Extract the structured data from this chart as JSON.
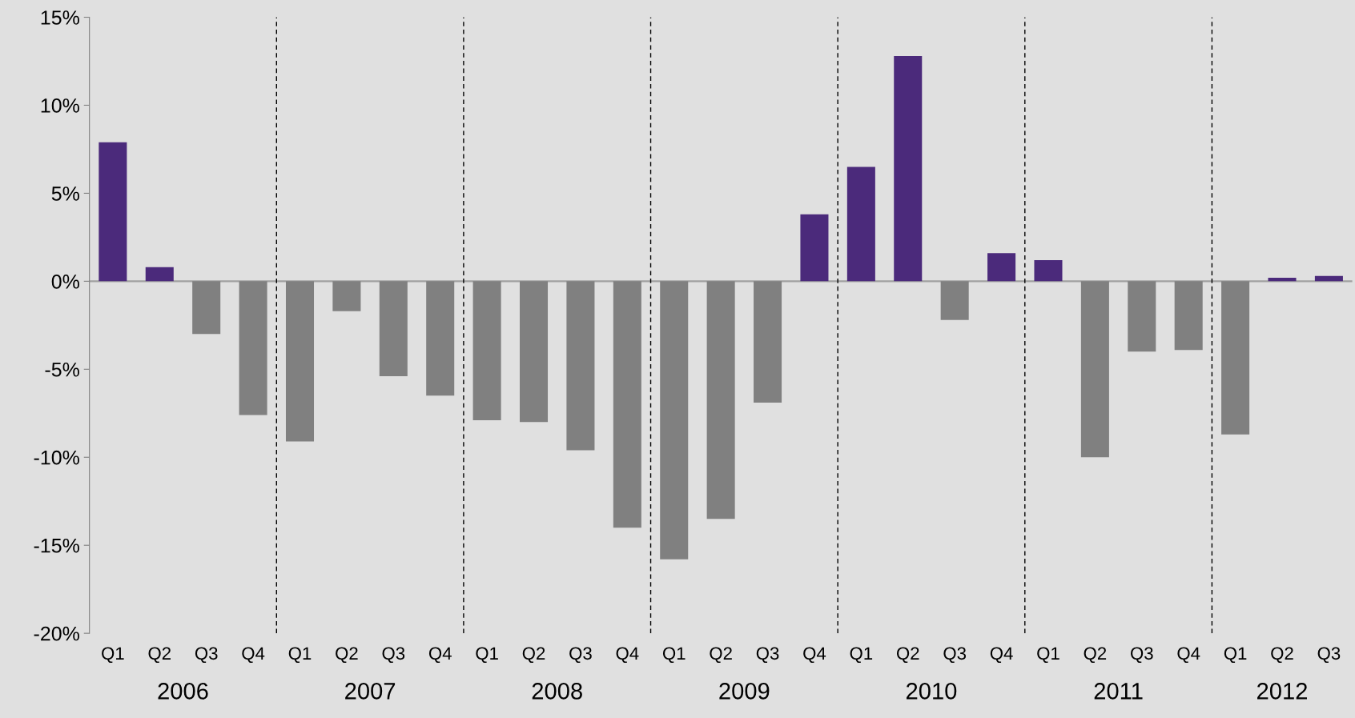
{
  "chart_data": {
    "type": "bar",
    "categories": [
      "Q1",
      "Q2",
      "Q3",
      "Q4",
      "Q1",
      "Q2",
      "Q3",
      "Q4",
      "Q1",
      "Q2",
      "Q3",
      "Q4",
      "Q1",
      "Q2",
      "Q3",
      "Q4",
      "Q1",
      "Q2",
      "Q3",
      "Q4",
      "Q1",
      "Q2",
      "Q3",
      "Q4",
      "Q1",
      "Q2",
      "Q3"
    ],
    "values": [
      7.9,
      0.8,
      -3.0,
      -7.6,
      -9.1,
      -1.7,
      -5.4,
      -6.5,
      -7.9,
      -8.0,
      -9.6,
      -14.0,
      -15.8,
      -13.5,
      -6.9,
      3.8,
      6.5,
      12.8,
      -2.2,
      1.6,
      1.2,
      -10.0,
      -4.0,
      -3.9,
      -8.7,
      0.2,
      0.3
    ],
    "colors": [
      "#4b2a7b",
      "#4b2a7b",
      "#808080",
      "#808080",
      "#808080",
      "#808080",
      "#808080",
      "#808080",
      "#808080",
      "#808080",
      "#808080",
      "#808080",
      "#808080",
      "#808080",
      "#808080",
      "#4b2a7b",
      "#4b2a7b",
      "#4b2a7b",
      "#808080",
      "#4b2a7b",
      "#4b2a7b",
      "#808080",
      "#808080",
      "#808080",
      "#808080",
      "#4b2a7b",
      "#4b2a7b"
    ],
    "ylim": [
      -20,
      15
    ],
    "yticks": [
      {
        "value": -20,
        "label": "-20%"
      },
      {
        "value": -15,
        "label": "-15%"
      },
      {
        "value": -10,
        "label": "-10%"
      },
      {
        "value": -5,
        "label": "-5%"
      },
      {
        "value": 0,
        "label": "0%"
      },
      {
        "value": 5,
        "label": "5%"
      },
      {
        "value": 10,
        "label": "10%"
      },
      {
        "value": 15,
        "label": "15%"
      }
    ],
    "ref_lines": [
      {
        "axis": "y",
        "value": 0,
        "color": "#a0a0a0",
        "line_style": "solid"
      }
    ],
    "annotations": [
      "2006",
      "2007",
      "2008",
      "2009",
      "2010",
      "2011",
      "2012"
    ],
    "grid": false
  }
}
